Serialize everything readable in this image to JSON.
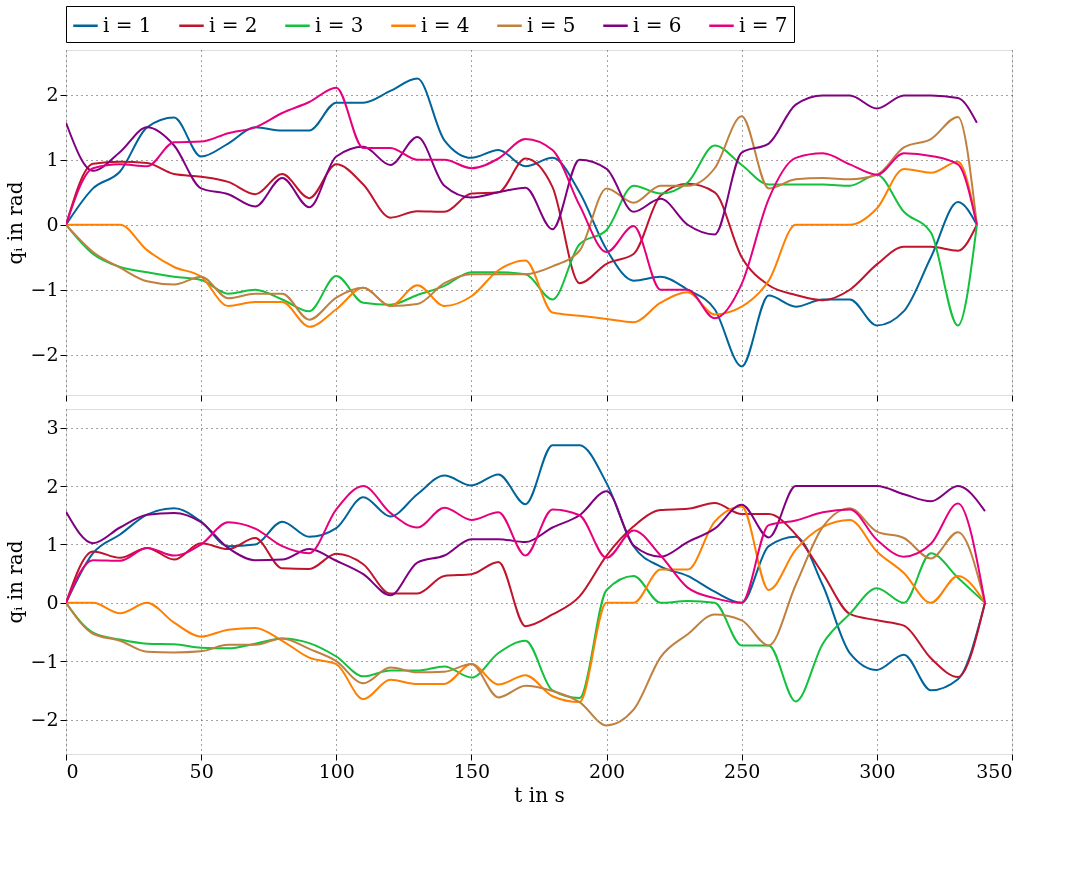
{
  "chart_data": [
    {
      "type": "line",
      "ylabel": "qᵢ in rad",
      "xlim": [
        0,
        350
      ],
      "xticks": [
        0,
        50,
        100,
        150,
        200,
        250,
        300,
        350
      ],
      "ylim": [
        -2.62,
        2.69
      ],
      "yticks": [
        -2,
        -1,
        0,
        1,
        2
      ],
      "grid": true,
      "legend": "top",
      "tick_labels": "y",
      "line_style": "solid",
      "marker": "none",
      "x": [
        0,
        10,
        20,
        30,
        40,
        50,
        60,
        70,
        80,
        90,
        100,
        110,
        120,
        130,
        140,
        150,
        160,
        170,
        180,
        190,
        200,
        210,
        220,
        230,
        240,
        250,
        260,
        270,
        280,
        290,
        300,
        310,
        320,
        330,
        337
      ],
      "series": [
        {
          "name": "i = 1",
          "color": "#00649b",
          "values": [
            0,
            0.56,
            0.82,
            1.5,
            1.65,
            1.05,
            1.25,
            1.5,
            1.45,
            1.45,
            1.88,
            1.88,
            2.06,
            2.25,
            1.3,
            1.03,
            1.15,
            0.9,
            1.03,
            0.5,
            -0.38,
            -0.86,
            -0.8,
            -1.0,
            -1.3,
            -2.18,
            -1.09,
            -1.26,
            -1.15,
            -1.15,
            -1.55,
            -1.33,
            -0.5,
            0.35,
            0
          ]
        },
        {
          "name": "i = 2",
          "color": "#c0142d",
          "values": [
            0,
            0.94,
            0.97,
            0.95,
            0.78,
            0.74,
            0.66,
            0.47,
            0.78,
            0.41,
            0.93,
            0.62,
            0.11,
            0.21,
            0.2,
            0.48,
            0.5,
            1.02,
            0.58,
            -0.9,
            -0.6,
            -0.45,
            0.45,
            0.63,
            0.5,
            -0.5,
            -0.93,
            -1.08,
            -1.16,
            -1.0,
            -0.61,
            -0.34,
            -0.34,
            -0.4,
            0
          ]
        },
        {
          "name": "i = 3",
          "color": "#14c03c",
          "values": [
            0,
            -0.45,
            -0.65,
            -0.73,
            -0.8,
            -0.85,
            -1.06,
            -1.0,
            -1.15,
            -1.33,
            -0.79,
            -1.2,
            -1.23,
            -1.08,
            -0.94,
            -0.73,
            -0.73,
            -0.76,
            -1.15,
            -0.3,
            -0.08,
            0.6,
            0.48,
            0.65,
            1.22,
            0.92,
            0.62,
            0.62,
            0.62,
            0.6,
            0.77,
            0.2,
            -0.12,
            -1.55,
            0
          ]
        },
        {
          "name": "i = 4",
          "color": "#ff8000",
          "values": [
            0,
            0,
            0,
            -0.39,
            -0.65,
            -0.8,
            -1.25,
            -1.19,
            -1.19,
            -1.57,
            -1.3,
            -0.97,
            -1.25,
            -0.93,
            -1.25,
            -1.1,
            -0.7,
            -0.55,
            -1.35,
            -1.4,
            -1.45,
            -1.5,
            -1.2,
            -1.04,
            -1.38,
            -1.26,
            -0.86,
            0,
            0,
            0,
            0.25,
            0.86,
            0.8,
            0.97,
            0
          ]
        },
        {
          "name": "i = 5",
          "color": "#c08040",
          "values": [
            0,
            -0.42,
            -0.66,
            -0.87,
            -0.92,
            -0.8,
            -1.13,
            -1.06,
            -1.06,
            -1.46,
            -1.12,
            -0.97,
            -1.25,
            -1.22,
            -0.9,
            -0.76,
            -0.76,
            -0.76,
            -0.64,
            -0.4,
            0.56,
            0.34,
            0.6,
            0.6,
            0.87,
            1.67,
            0.56,
            0.7,
            0.72,
            0.7,
            0.77,
            1.19,
            1.32,
            1.66,
            0
          ]
        },
        {
          "name": "i = 6",
          "color": "#800080",
          "values": [
            1.57,
            0.83,
            1.12,
            1.5,
            1.22,
            0.56,
            0.47,
            0.28,
            0.72,
            0.27,
            1.05,
            1.2,
            0.92,
            1.35,
            0.6,
            0.42,
            0.5,
            0.57,
            -0.07,
            1.0,
            0.86,
            0.2,
            0.4,
            0,
            -0.15,
            1.11,
            1.25,
            1.85,
            1.99,
            1.99,
            1.79,
            1.99,
            1.99,
            1.95,
            1.57
          ]
        },
        {
          "name": "i = 7",
          "color": "#e6007e",
          "values": [
            0,
            0.87,
            0.93,
            0.9,
            1.27,
            1.28,
            1.41,
            1.5,
            1.72,
            1.89,
            2.11,
            1.18,
            1.18,
            1.0,
            1.0,
            0.87,
            1.02,
            1.32,
            1.15,
            0.3,
            -0.42,
            -0.02,
            -1.0,
            -1.0,
            -1.44,
            -0.91,
            0.4,
            1.03,
            1.1,
            0.93,
            0.77,
            1.1,
            1.06,
            0.93,
            0
          ]
        }
      ]
    },
    {
      "type": "line",
      "xlabel": "t in s",
      "ylabel": "qᵢ in rad",
      "xlim": [
        0,
        350
      ],
      "xticks": [
        0,
        50,
        100,
        150,
        200,
        250,
        300,
        350
      ],
      "ylim": [
        -2.59,
        3.32
      ],
      "yticks": [
        -2,
        -1,
        0,
        1,
        2,
        3
      ],
      "grid": true,
      "line_style": "solid",
      "marker": "none",
      "x": [
        0,
        10,
        20,
        30,
        40,
        50,
        60,
        70,
        80,
        90,
        100,
        110,
        120,
        130,
        140,
        150,
        160,
        170,
        180,
        190,
        200,
        210,
        220,
        230,
        240,
        250,
        260,
        270,
        280,
        290,
        300,
        310,
        320,
        330,
        340
      ],
      "series": [
        {
          "color": "#00649b",
          "values": [
            0,
            0.85,
            1.17,
            1.51,
            1.62,
            1.39,
            0.97,
            1.0,
            1.39,
            1.13,
            1.28,
            1.81,
            1.48,
            1.86,
            2.18,
            2.01,
            2.2,
            1.69,
            2.7,
            2.7,
            2.05,
            0.97,
            0.62,
            0.46,
            0.19,
            0,
            0.97,
            1.13,
            0.3,
            -0.86,
            -1.15,
            -0.89,
            -1.5,
            -1.31,
            0
          ]
        },
        {
          "color": "#c0142d",
          "values": [
            0,
            0.88,
            0.77,
            0.94,
            0.74,
            1.02,
            0.92,
            1.11,
            0.59,
            0.58,
            0.84,
            0.66,
            0.16,
            0.16,
            0.46,
            0.49,
            0.7,
            -0.4,
            -0.2,
            0.11,
            0.81,
            1.31,
            1.59,
            1.61,
            1.71,
            1.52,
            1.52,
            1.17,
            0.5,
            -0.19,
            -0.3,
            -0.39,
            -0.95,
            -1.27,
            0
          ]
        },
        {
          "color": "#14c03c",
          "values": [
            0,
            -0.51,
            -0.63,
            -0.7,
            -0.71,
            -0.77,
            -0.78,
            -0.7,
            -0.61,
            -0.69,
            -0.92,
            -1.26,
            -1.16,
            -1.16,
            -1.09,
            -1.28,
            -0.86,
            -0.65,
            -1.5,
            -1.63,
            0.22,
            0.46,
            0,
            0.03,
            0,
            -0.73,
            -0.73,
            -1.69,
            -0.7,
            -0.19,
            0.25,
            0,
            0.85,
            0.43,
            0
          ]
        },
        {
          "color": "#ff8000",
          "values": [
            0,
            0,
            -0.18,
            0,
            -0.34,
            -0.58,
            -0.46,
            -0.43,
            -0.65,
            -0.94,
            -1.05,
            -1.65,
            -1.32,
            -1.39,
            -1.39,
            -1.05,
            -1.4,
            -1.24,
            -1.6,
            -1.7,
            0,
            0,
            0.57,
            0.57,
            1.39,
            1.65,
            0.22,
            0.91,
            1.3,
            1.42,
            0.88,
            0.51,
            0,
            0.46,
            0
          ]
        },
        {
          "color": "#c08040",
          "values": [
            0,
            -0.53,
            -0.65,
            -0.84,
            -0.85,
            -0.83,
            -0.72,
            -0.72,
            -0.61,
            -0.79,
            -1.0,
            -1.38,
            -1.11,
            -1.19,
            -1.18,
            -1.05,
            -1.62,
            -1.42,
            -1.51,
            -1.7,
            -2.1,
            -1.83,
            -0.93,
            -0.54,
            -0.2,
            -0.3,
            -0.73,
            0.31,
            1.3,
            1.62,
            1.22,
            1.11,
            0.76,
            1.21,
            0
          ]
        },
        {
          "color": "#800080",
          "values": [
            1.56,
            1.02,
            1.29,
            1.51,
            1.54,
            1.38,
            0.94,
            0.73,
            0.74,
            0.92,
            0.72,
            0.49,
            0.13,
            0.69,
            0.81,
            1.09,
            1.09,
            1.04,
            1.29,
            1.5,
            1.91,
            0.98,
            0.79,
            1.04,
            1.27,
            1.68,
            1.12,
            2.0,
            2.0,
            2.0,
            2.0,
            1.86,
            1.74,
            2.0,
            1.57
          ]
        },
        {
          "color": "#e6007e",
          "values": [
            0,
            0.73,
            0.72,
            0.94,
            0.81,
            1.0,
            1.38,
            1.27,
            0.97,
            0.85,
            1.6,
            2.0,
            1.54,
            1.29,
            1.63,
            1.42,
            1.55,
            0.81,
            1.6,
            1.5,
            0.77,
            1.24,
            0.81,
            0.26,
            0.08,
            0,
            1.33,
            1.41,
            1.55,
            1.6,
            1.08,
            0.79,
            1.01,
            1.7,
            0
          ]
        }
      ]
    }
  ]
}
